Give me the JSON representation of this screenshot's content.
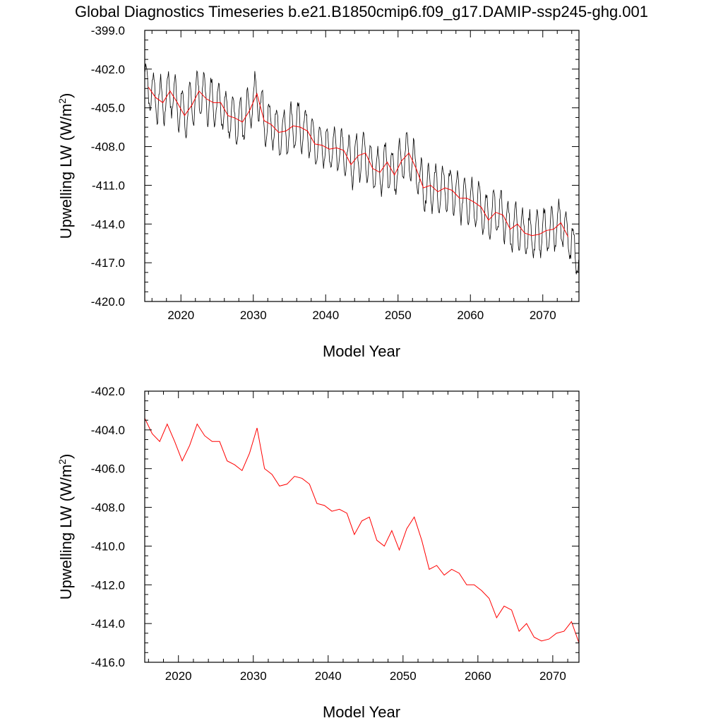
{
  "figure": {
    "title": "Global Diagnostics Timeseries b.e21.B1850cmip6.f09_g17.DAMIP-ssp245-ghg.001"
  },
  "chart_data": [
    {
      "type": "line",
      "title": "Global Diagnostics Timeseries b.e21.B1850cmip6.f09_g17.DAMIP-ssp245-ghg.001",
      "xlabel": "Model Year",
      "ylabel": "Upwelling LW (W/m^2)",
      "ylabel_main": "Upwelling LW (W/m",
      "ylabel_sup": "2",
      "ylabel_end": ")",
      "xlim": [
        2015.0,
        2075.0
      ],
      "ylim": [
        -420.0,
        -399.0
      ],
      "xticks": [
        2020,
        2030,
        2040,
        2050,
        2060,
        2070
      ],
      "xtick_labels": [
        "2020",
        "2030",
        "2040",
        "2050",
        "2060",
        "2070"
      ],
      "yticks": [
        -420.0,
        -417.0,
        -414.0,
        -411.0,
        -408.0,
        -405.0,
        -402.0,
        -399.0
      ],
      "ytick_labels": [
        "-420.0",
        "-417.0",
        "-414.0",
        "-411.0",
        "-408.0",
        "-405.0",
        "-402.0",
        "-399.0"
      ],
      "grid": false,
      "monthly_series": {
        "color": "#000000",
        "start_year": 2015.04,
        "step_years": 0.0833333,
        "seasonal_amplitude": 1.7,
        "peak_month": 8,
        "values_note": "monthly global means oscillating about the annual means with a seasonal cycle of about ±1.7 W/m2; final months dip to about -417.8",
        "last_value": -417.8
      },
      "series": [
        {
          "color": "#ff0000",
          "x": [
            2015.5,
            2016.5,
            2017.5,
            2018.5,
            2019.5,
            2020.5,
            2021.5,
            2022.5,
            2023.5,
            2024.5,
            2025.5,
            2026.5,
            2027.5,
            2028.5,
            2029.5,
            2030.5,
            2031.5,
            2032.5,
            2033.5,
            2034.5,
            2035.5,
            2036.5,
            2037.5,
            2038.5,
            2039.5,
            2040.5,
            2041.5,
            2042.5,
            2043.5,
            2044.5,
            2045.5,
            2046.5,
            2047.5,
            2048.5,
            2049.5,
            2050.5,
            2051.5,
            2052.5,
            2053.5,
            2054.5,
            2055.5,
            2056.5,
            2057.5,
            2058.5,
            2059.5,
            2060.5,
            2061.5,
            2062.5,
            2063.5,
            2064.5,
            2065.5,
            2066.5,
            2067.5,
            2068.5,
            2069.5,
            2070.5,
            2071.5,
            2072.5,
            2073.5
          ],
          "values": [
            -403.4,
            -404.2,
            -404.6,
            -403.7,
            -404.6,
            -405.6,
            -404.8,
            -403.7,
            -404.3,
            -404.6,
            -404.6,
            -405.6,
            -405.8,
            -406.1,
            -405.2,
            -403.9,
            -406.0,
            -406.3,
            -406.9,
            -406.8,
            -406.4,
            -406.5,
            -406.8,
            -407.8,
            -407.9,
            -408.2,
            -408.1,
            -408.3,
            -409.4,
            -408.7,
            -408.5,
            -409.7,
            -410.0,
            -409.2,
            -410.2,
            -409.1,
            -408.5,
            -409.7,
            -411.2,
            -411.0,
            -411.5,
            -411.2,
            -411.4,
            -412.0,
            -412.0,
            -412.3,
            -412.7,
            -413.7,
            -413.1,
            -413.3,
            -414.4,
            -414.0,
            -414.7,
            -414.9,
            -414.8,
            -414.5,
            -414.4,
            -413.9,
            -415.0
          ]
        }
      ]
    },
    {
      "type": "line",
      "xlabel": "Model Year",
      "ylabel": "Upwelling LW (W/m^2)",
      "ylabel_main": "Upwelling LW (W/m",
      "ylabel_sup": "2",
      "ylabel_end": ")",
      "xlim": [
        2015.5,
        2073.5
      ],
      "ylim": [
        -416.0,
        -402.0
      ],
      "xticks": [
        2020,
        2030,
        2040,
        2050,
        2060,
        2070
      ],
      "xtick_labels": [
        "2020",
        "2030",
        "2040",
        "2050",
        "2060",
        "2070"
      ],
      "yticks": [
        -416.0,
        -414.0,
        -412.0,
        -410.0,
        -408.0,
        -406.0,
        -404.0,
        -402.0
      ],
      "ytick_labels": [
        "-416.0",
        "-414.0",
        "-412.0",
        "-410.0",
        "-408.0",
        "-406.0",
        "-404.0",
        "-402.0"
      ],
      "grid": false,
      "series": [
        {
          "color": "#ff0000",
          "x": [
            2015.5,
            2016.5,
            2017.5,
            2018.5,
            2019.5,
            2020.5,
            2021.5,
            2022.5,
            2023.5,
            2024.5,
            2025.5,
            2026.5,
            2027.5,
            2028.5,
            2029.5,
            2030.5,
            2031.5,
            2032.5,
            2033.5,
            2034.5,
            2035.5,
            2036.5,
            2037.5,
            2038.5,
            2039.5,
            2040.5,
            2041.5,
            2042.5,
            2043.5,
            2044.5,
            2045.5,
            2046.5,
            2047.5,
            2048.5,
            2049.5,
            2050.5,
            2051.5,
            2052.5,
            2053.5,
            2054.5,
            2055.5,
            2056.5,
            2057.5,
            2058.5,
            2059.5,
            2060.5,
            2061.5,
            2062.5,
            2063.5,
            2064.5,
            2065.5,
            2066.5,
            2067.5,
            2068.5,
            2069.5,
            2070.5,
            2071.5,
            2072.5,
            2073.5
          ],
          "values": [
            -403.4,
            -404.2,
            -404.6,
            -403.7,
            -404.6,
            -405.6,
            -404.8,
            -403.7,
            -404.3,
            -404.6,
            -404.6,
            -405.6,
            -405.8,
            -406.1,
            -405.2,
            -403.9,
            -406.0,
            -406.3,
            -406.9,
            -406.8,
            -406.4,
            -406.5,
            -406.8,
            -407.8,
            -407.9,
            -408.2,
            -408.1,
            -408.3,
            -409.4,
            -408.7,
            -408.5,
            -409.7,
            -410.0,
            -409.2,
            -410.2,
            -409.1,
            -408.5,
            -409.7,
            -411.2,
            -411.0,
            -411.5,
            -411.2,
            -411.4,
            -412.0,
            -412.0,
            -412.3,
            -412.7,
            -413.7,
            -413.1,
            -413.3,
            -414.4,
            -414.0,
            -414.7,
            -414.9,
            -414.8,
            -414.5,
            -414.4,
            -413.9,
            -415.0
          ]
        }
      ]
    }
  ]
}
